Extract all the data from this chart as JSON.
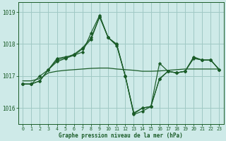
{
  "title": "Graphe pression niveau de la mer (hPa)",
  "bg_color": "#ceeae8",
  "grid_color": "#a0c8c4",
  "line_color": "#1a5c28",
  "xlim": [
    -0.5,
    23.5
  ],
  "ylim": [
    1015.5,
    1019.3
  ],
  "yticks": [
    1016,
    1017,
    1018,
    1019
  ],
  "xticks": [
    0,
    1,
    2,
    3,
    4,
    5,
    6,
    7,
    8,
    9,
    10,
    11,
    12,
    13,
    14,
    15,
    16,
    17,
    18,
    19,
    20,
    21,
    22,
    23
  ],
  "flat_line": {
    "x": [
      0,
      1,
      2,
      3,
      4,
      5,
      6,
      7,
      8,
      9,
      10,
      11,
      12,
      13,
      14,
      15,
      16,
      17,
      18,
      19,
      20,
      21,
      22,
      23
    ],
    "y": [
      1016.85,
      1016.85,
      1016.92,
      1017.1,
      1017.15,
      1017.18,
      1017.2,
      1017.22,
      1017.24,
      1017.25,
      1017.25,
      1017.22,
      1017.2,
      1017.18,
      1017.15,
      1017.15,
      1017.16,
      1017.18,
      1017.2,
      1017.22,
      1017.22,
      1017.22,
      1017.22,
      1017.22
    ]
  },
  "curve1": {
    "x": [
      0,
      1,
      2,
      3,
      4,
      5,
      6,
      7,
      8,
      9,
      10,
      11,
      12,
      13,
      14,
      15,
      16,
      17,
      18,
      19,
      20,
      21,
      22,
      23
    ],
    "y": [
      1016.75,
      1016.75,
      1017.0,
      1017.2,
      1017.55,
      1017.6,
      1017.65,
      1017.75,
      1018.35,
      1018.9,
      1018.2,
      1018.0,
      1017.0,
      1015.8,
      1015.9,
      1016.05,
      1017.4,
      1017.15,
      1017.1,
      1017.15,
      1017.6,
      1017.5,
      1017.5,
      1017.2
    ]
  },
  "curve2": {
    "x": [
      0,
      1,
      2,
      3,
      4,
      5,
      6,
      7,
      8,
      9,
      10,
      11,
      12,
      13,
      14,
      15,
      16,
      17,
      18,
      19,
      20,
      21,
      22,
      23
    ],
    "y": [
      1016.75,
      1016.75,
      1016.85,
      1017.2,
      1017.45,
      1017.55,
      1017.65,
      1017.85,
      1018.15,
      1018.85,
      1018.2,
      1017.95,
      1017.0,
      1015.85,
      1016.0,
      1016.05,
      1016.9,
      1017.15,
      1017.1,
      1017.15,
      1017.55,
      1017.5,
      1017.5,
      1017.2
    ]
  },
  "curve3": {
    "x": [
      0,
      1,
      2,
      3,
      4,
      5,
      6,
      7,
      8,
      9,
      10,
      11,
      12,
      13,
      14,
      15,
      16,
      17,
      18,
      19,
      20,
      21,
      22,
      23
    ],
    "y": [
      1016.75,
      1016.75,
      1016.85,
      1017.2,
      1017.5,
      1017.58,
      1017.68,
      1017.88,
      1018.2,
      1018.85,
      1018.2,
      1017.98,
      1017.0,
      1015.82,
      1016.0,
      1016.05,
      1016.92,
      1017.15,
      1017.1,
      1017.15,
      1017.57,
      1017.5,
      1017.5,
      1017.2
    ]
  }
}
